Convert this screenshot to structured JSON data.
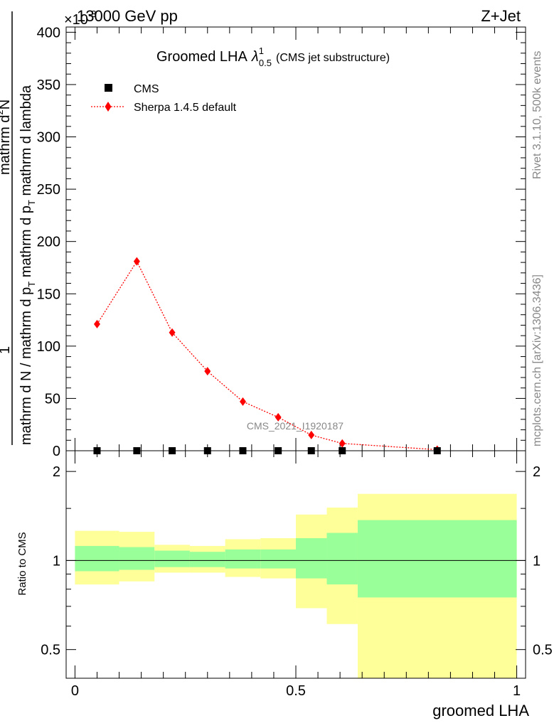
{
  "header": {
    "left": "13000 GeV pp",
    "right": "Z+Jet",
    "exponent": "×10",
    "exponent_power": "-3"
  },
  "side_labels": {
    "rivet": "Rivet 3.1.10,  500k events",
    "mcplots": "mcplots.cern.ch [arXiv:1306.3436]"
  },
  "colors": {
    "sherpa": "#ff0000",
    "cms": "#000000",
    "band_inner": "#99ff99",
    "band_outer": "#ffff99"
  },
  "chart_data": [
    {
      "type": "scatter",
      "title": "Groomed LHA",
      "title_symbol": "λ",
      "title_sup": "1",
      "title_sub": "0.5",
      "subtitle": "(CMS jet substructure)",
      "ylabel": {
        "fraction_numerator": "1",
        "fraction_denominator": "mathrm d N / mathrm d p_T mathrm d p_T mathrm d lambda",
        "top_numerator": "mathrm d^2N",
        "line1": "mathrm d N / mathrm d p",
        "line1_sub": "T",
        "line2": "mathrm d p",
        "line2_sub": "T",
        "line2b": "mathrm d lambda",
        "top": "mathrm d",
        "top_sup": "2",
        "top_end": "N"
      },
      "ylabel_text": {
        "one": "1",
        "denom_part1": "mathrm d N / mathrm d p",
        "denom_sub1": "T",
        "denom_part2": " mathrm d p",
        "denom_sub2": "T",
        "denom_part3": " mathrm d lambda",
        "num": "mathrm d",
        "num_sup": "2",
        "num_end": "N"
      },
      "xlim": [
        -0.02,
        1.02
      ],
      "ylim": [
        0,
        405
      ],
      "yticks": [
        0,
        50,
        100,
        150,
        200,
        250,
        300,
        350,
        400
      ],
      "legend": {
        "position": "top-left",
        "entries": [
          "CMS",
          "Sherpa 1.4.5 default"
        ]
      },
      "watermark": "CMS_2021_I1920187",
      "series": [
        {
          "name": "CMS",
          "x": [
            0.05,
            0.14,
            0.22,
            0.3,
            0.38,
            0.46,
            0.535,
            0.605,
            0.82
          ],
          "y": [
            0,
            0,
            0,
            0,
            0,
            0,
            0,
            0,
            0
          ]
        },
        {
          "name": "Sherpa 1.4.5 default",
          "x": [
            0.05,
            0.14,
            0.22,
            0.3,
            0.38,
            0.46,
            0.535,
            0.605,
            0.82
          ],
          "y": [
            121,
            181,
            113,
            76,
            47,
            32,
            15,
            7,
            1
          ]
        }
      ]
    },
    {
      "type": "area",
      "ylabel": "Ratio to CMS",
      "xlabel": "groomed LHA",
      "scale": "log",
      "ylim": [
        0.4,
        2.35
      ],
      "yticks": [
        0.5,
        1,
        2
      ],
      "ytick_labels": [
        "0.5",
        "1",
        "2"
      ],
      "xticks": [
        0,
        0.5,
        1
      ],
      "xtick_labels": [
        "0",
        "0.5",
        "1"
      ],
      "bins": [
        {
          "x0": 0.0,
          "x1": 0.1,
          "inner": [
            0.92,
            1.12
          ],
          "outer": [
            0.83,
            1.26
          ]
        },
        {
          "x0": 0.1,
          "x1": 0.18,
          "inner": [
            0.93,
            1.11
          ],
          "outer": [
            0.85,
            1.25
          ]
        },
        {
          "x0": 0.18,
          "x1": 0.26,
          "inner": [
            0.95,
            1.08
          ],
          "outer": [
            0.91,
            1.13
          ]
        },
        {
          "x0": 0.26,
          "x1": 0.34,
          "inner": [
            0.95,
            1.07
          ],
          "outer": [
            0.91,
            1.12
          ]
        },
        {
          "x0": 0.34,
          "x1": 0.42,
          "inner": [
            0.94,
            1.09
          ],
          "outer": [
            0.88,
            1.18
          ]
        },
        {
          "x0": 0.42,
          "x1": 0.5,
          "inner": [
            0.94,
            1.09
          ],
          "outer": [
            0.87,
            1.19
          ]
        },
        {
          "x0": 0.5,
          "x1": 0.57,
          "inner": [
            0.87,
            1.19
          ],
          "outer": [
            0.69,
            1.43
          ]
        },
        {
          "x0": 0.57,
          "x1": 0.64,
          "inner": [
            0.83,
            1.24
          ],
          "outer": [
            0.61,
            1.51
          ]
        },
        {
          "x0": 0.64,
          "x1": 1.0,
          "inner": [
            0.75,
            1.37
          ],
          "outer": [
            0.35,
            1.68
          ]
        }
      ],
      "reference": 1
    }
  ]
}
